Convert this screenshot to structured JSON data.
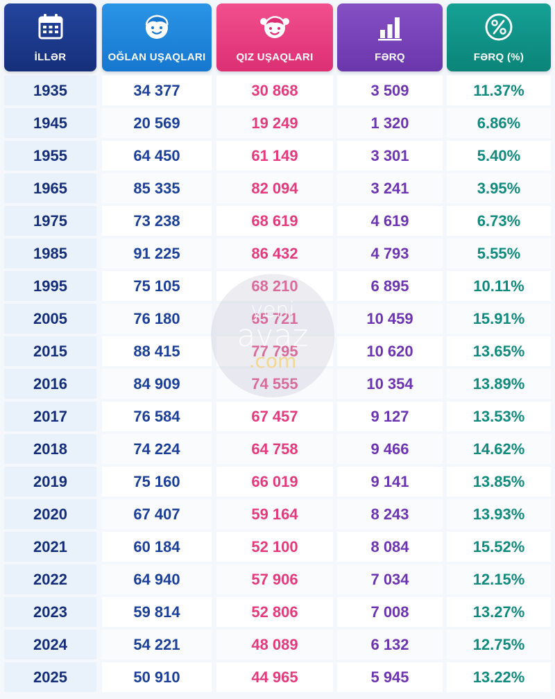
{
  "headers": {
    "year": "İLLƏR",
    "boys": "OĞLAN UŞAQLARI",
    "girls": "QIZ UŞAQLARI",
    "diff": "FƏRQ",
    "pct": "FƏRQ (%)"
  },
  "icons": {
    "year": "calendar-icon",
    "boys": "boy-face-icon",
    "girls": "girl-face-icon",
    "diff": "bar-chart-icon",
    "pct": "percent-icon"
  },
  "colors": {
    "year": "#1a3a8c",
    "boys": "#1f86da",
    "girls": "#e53c7f",
    "diff": "#7443b8",
    "pct": "#119285"
  },
  "watermark": {
    "line1": "yeni",
    "line2": "avaz",
    "line3": ".com"
  },
  "chart_data": {
    "type": "table",
    "columns": [
      "İLLƏR",
      "OĞLAN UŞAQLARI",
      "QIZ UŞAQLARI",
      "FƏRQ",
      "FƏRQ (%)"
    ],
    "rows": [
      [
        "1935",
        "34 377",
        "30 868",
        "3 509",
        "11.37%"
      ],
      [
        "1945",
        "20 569",
        "19 249",
        "1 320",
        "6.86%"
      ],
      [
        "1955",
        "64 450",
        "61 149",
        "3 301",
        "5.40%"
      ],
      [
        "1965",
        "85 335",
        "82 094",
        "3 241",
        "3.95%"
      ],
      [
        "1975",
        "73 238",
        "68 619",
        "4 619",
        "6.73%"
      ],
      [
        "1985",
        "91 225",
        "86 432",
        "4 793",
        "5.55%"
      ],
      [
        "1995",
        "75 105",
        "68 210",
        "6 895",
        "10.11%"
      ],
      [
        "2005",
        "76 180",
        "65 721",
        "10 459",
        "15.91%"
      ],
      [
        "2015",
        "88 415",
        "77 795",
        "10 620",
        "13.65%"
      ],
      [
        "2016",
        "84 909",
        "74 555",
        "10 354",
        "13.89%"
      ],
      [
        "2017",
        "76 584",
        "67 457",
        "9 127",
        "13.53%"
      ],
      [
        "2018",
        "74 224",
        "64 758",
        "9 466",
        "14.62%"
      ],
      [
        "2019",
        "75 160",
        "66 019",
        "9 141",
        "13.85%"
      ],
      [
        "2020",
        "67 407",
        "59 164",
        "8 243",
        "13.93%"
      ],
      [
        "2021",
        "60 184",
        "52 100",
        "8 084",
        "15.52%"
      ],
      [
        "2022",
        "64 940",
        "57 906",
        "7 034",
        "12.15%"
      ],
      [
        "2023",
        "59 814",
        "52 806",
        "7 008",
        "13.27%"
      ],
      [
        "2024",
        "54 221",
        "48 089",
        "6 132",
        "12.75%"
      ],
      [
        "2025",
        "50 910",
        "44 965",
        "5 945",
        "13.22%"
      ]
    ]
  }
}
